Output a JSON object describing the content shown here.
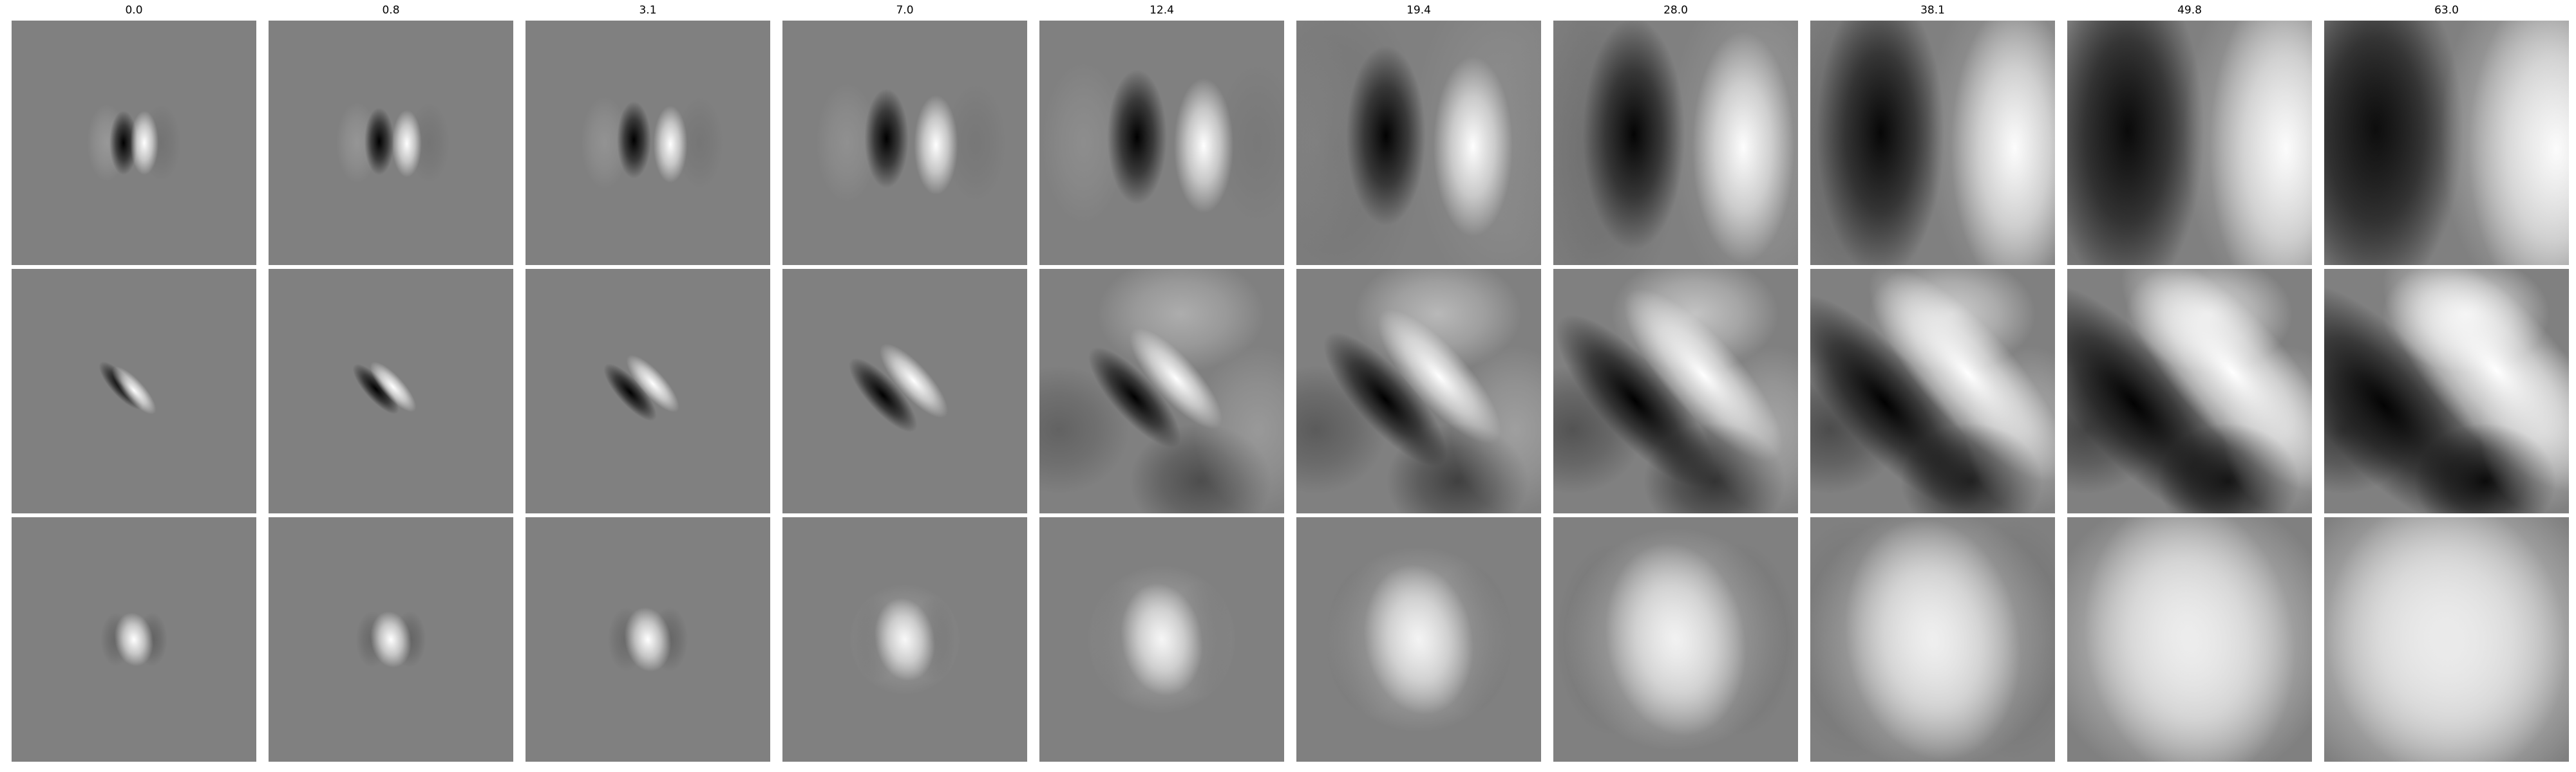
{
  "figure": {
    "background": "#ffffff",
    "panel_background": "#808080",
    "column_titles": [
      "0.0",
      "0.8",
      "3.1",
      "7.0",
      "12.4",
      "19.4",
      "28.0",
      "38.1",
      "49.8",
      "63.0"
    ],
    "rows": 3,
    "columns": 10
  }
}
